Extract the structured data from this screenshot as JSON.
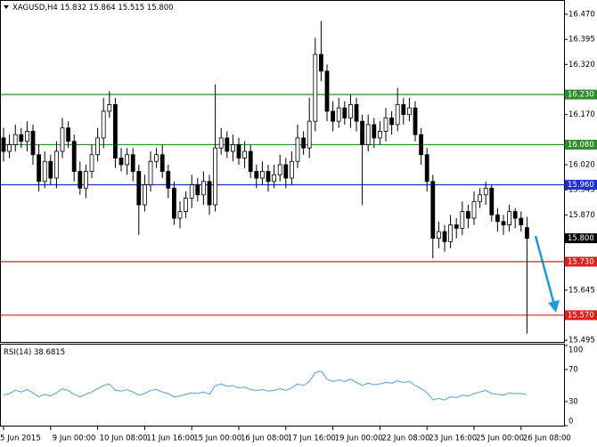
{
  "chart_data": {
    "type": "candlestick",
    "symbol": "XAGUSD,H4",
    "categories": [
      "5 Jun 2015",
      null,
      null,
      null,
      null,
      null,
      null,
      null,
      "9 Jun 00:00",
      null,
      null,
      null,
      null,
      null,
      null,
      null,
      "10 Jun 08:00",
      null,
      null,
      null,
      null,
      null,
      null,
      null,
      "11 Jun 16:00",
      null,
      null,
      null,
      null,
      null,
      null,
      null,
      "15 Jun 00:00",
      null,
      null,
      null,
      null,
      null,
      null,
      null,
      "16 Jun 08:00",
      null,
      null,
      null,
      null,
      null,
      null,
      null,
      "17 Jun 16:00",
      null,
      null,
      null,
      null,
      null,
      null,
      null,
      "19 Jun 00:00",
      null,
      null,
      null,
      null,
      null,
      null,
      null,
      "22 Jun 08:00",
      null,
      null,
      null,
      null,
      null,
      null,
      null,
      "23 Jun 16:00",
      null,
      null,
      null,
      null,
      null,
      null,
      null,
      "25 Jun 00:00",
      null,
      null,
      null,
      null,
      null,
      null,
      null,
      "26 Jun 08:00",
      null
    ],
    "open": [
      16.1,
      16.06,
      16.08,
      16.11,
      16.09,
      16.12,
      16.05,
      15.97,
      16.03,
      15.98,
      16.06,
      16.13,
      16.09,
      16.0,
      15.95,
      16.0,
      16.05,
      16.1,
      16.18,
      16.2,
      16.04,
      16.02,
      16.05,
      16.0,
      15.9,
      15.96,
      16.03,
      16.05,
      16.0,
      15.95,
      15.86,
      15.88,
      15.92,
      15.96,
      15.93,
      15.97,
      15.9,
      16.07,
      16.1,
      16.06,
      16.08,
      16.04,
      16.06,
      16.0,
      15.98,
      16.0,
      15.97,
      15.99,
      16.02,
      15.98,
      16.03,
      16.1,
      16.07,
      16.15,
      16.35,
      16.3,
      16.18,
      16.15,
      16.19,
      16.16,
      16.2,
      16.15,
      16.08,
      16.14,
      16.1,
      16.12,
      16.16,
      16.14,
      16.2,
      16.17,
      16.19,
      16.11,
      16.05,
      15.97,
      15.8,
      15.82,
      15.79,
      15.84,
      15.83,
      15.88,
      15.86,
      15.91,
      15.93,
      15.95,
      15.87,
      15.85,
      15.84,
      15.88,
      15.86,
      15.832
    ],
    "high": [
      16.13,
      16.11,
      16.14,
      16.13,
      16.15,
      16.14,
      16.08,
      16.06,
      16.05,
      16.09,
      16.16,
      16.15,
      16.11,
      16.03,
      16.02,
      16.08,
      16.13,
      16.22,
      16.24,
      16.22,
      16.07,
      16.07,
      16.07,
      16.02,
      15.99,
      16.06,
      16.07,
      16.08,
      16.02,
      15.97,
      15.91,
      15.94,
      15.99,
      15.98,
      16.0,
      15.99,
      16.26,
      16.13,
      16.12,
      16.11,
      16.1,
      16.09,
      16.08,
      16.02,
      16.03,
      16.02,
      16.02,
      16.05,
      16.04,
      16.06,
      16.14,
      16.12,
      16.22,
      16.4,
      16.45,
      16.32,
      16.21,
      16.22,
      16.21,
      16.23,
      16.22,
      16.17,
      16.17,
      16.16,
      16.15,
      16.19,
      16.18,
      16.25,
      16.22,
      16.22,
      16.21,
      16.13,
      16.07,
      15.99,
      15.85,
      15.84,
      15.87,
      15.86,
      15.91,
      15.9,
      15.94,
      15.95,
      15.97,
      15.96,
      15.89,
      15.87,
      15.9,
      15.89,
      15.88,
      15.864
    ],
    "low": [
      16.03,
      16.04,
      16.06,
      16.07,
      16.06,
      16.02,
      15.94,
      15.95,
      15.96,
      15.95,
      16.04,
      16.07,
      15.97,
      15.93,
      15.92,
      15.98,
      16.03,
      16.07,
      16.16,
      16.01,
      16.0,
      15.99,
      15.97,
      15.81,
      15.88,
      15.94,
      16.01,
      15.98,
      15.92,
      15.84,
      15.83,
      15.86,
      15.89,
      15.91,
      15.9,
      15.87,
      15.88,
      16.05,
      16.04,
      16.03,
      16.02,
      16.01,
      15.98,
      15.95,
      15.96,
      15.94,
      15.95,
      15.97,
      15.95,
      15.96,
      16.01,
      16.05,
      16.04,
      16.12,
      16.27,
      16.15,
      16.12,
      16.13,
      16.14,
      16.13,
      16.12,
      15.9,
      16.06,
      16.07,
      16.08,
      16.09,
      16.11,
      16.12,
      16.14,
      16.15,
      16.09,
      16.02,
      15.94,
      15.74,
      15.77,
      15.76,
      15.77,
      15.8,
      15.81,
      15.83,
      15.84,
      15.89,
      15.9,
      15.85,
      15.82,
      15.81,
      15.82,
      15.83,
      15.82,
      15.515
    ],
    "close": [
      16.06,
      16.08,
      16.11,
      16.09,
      16.12,
      16.05,
      15.97,
      16.03,
      15.98,
      16.06,
      16.13,
      16.09,
      16.0,
      15.95,
      16.0,
      16.05,
      16.1,
      16.18,
      16.2,
      16.04,
      16.02,
      16.05,
      16.0,
      15.9,
      15.96,
      16.03,
      16.05,
      16.0,
      15.95,
      15.86,
      15.88,
      15.92,
      15.96,
      15.93,
      15.97,
      15.9,
      16.07,
      16.1,
      16.06,
      16.08,
      16.04,
      16.06,
      16.0,
      15.98,
      16.0,
      15.97,
      15.99,
      16.02,
      15.98,
      16.03,
      16.1,
      16.07,
      16.15,
      16.35,
      16.3,
      16.18,
      16.15,
      16.19,
      16.16,
      16.2,
      16.15,
      16.08,
      16.14,
      16.1,
      16.12,
      16.16,
      16.14,
      16.2,
      16.17,
      16.19,
      16.11,
      16.05,
      15.97,
      15.8,
      15.82,
      15.79,
      15.84,
      15.83,
      15.88,
      15.86,
      15.91,
      15.93,
      15.95,
      15.87,
      15.85,
      15.84,
      15.88,
      15.86,
      15.84,
      15.8
    ],
    "up_color": "#ffffff",
    "down_color": "#000000",
    "ylim": [
      15.49,
      16.51
    ],
    "yticks": [
      {
        "value": 16.47,
        "label": "16.470"
      },
      {
        "value": 16.395,
        "label": "16.395"
      },
      {
        "value": 16.32,
        "label": "16.320"
      },
      {
        "value": 16.17,
        "label": "16.170"
      },
      {
        "value": 16.02,
        "label": "16.020"
      },
      {
        "value": 15.945,
        "label": "15.945"
      },
      {
        "value": 15.87,
        "label": "15.870"
      },
      {
        "value": 15.645,
        "label": "15.645"
      },
      {
        "value": 15.495,
        "label": "15.495"
      }
    ],
    "grid": false,
    "current_price": {
      "value": 15.8,
      "label": "15.800"
    },
    "levels": [
      {
        "value": 16.23,
        "label": "16.230",
        "color": "#2e8b2e"
      },
      {
        "value": 16.08,
        "label": "16.080",
        "color": "#2e8b2e"
      },
      {
        "value": 15.96,
        "label": "15.960",
        "color": "#1f2fd6"
      },
      {
        "value": 15.73,
        "label": "15.730",
        "color": "#e02020"
      },
      {
        "value": 15.57,
        "label": "15.570",
        "color": "#e02020"
      }
    ],
    "indicator": {
      "type": "line",
      "name": "RSI(14)",
      "color": "#4aa3df",
      "values": [
        38,
        40,
        44,
        42,
        45,
        41,
        36,
        39,
        37,
        41,
        46,
        44,
        39,
        36,
        39,
        42,
        46,
        50,
        52,
        44,
        43,
        45,
        42,
        38,
        40,
        44,
        45,
        42,
        40,
        36,
        37,
        39,
        41,
        40,
        42,
        39,
        50,
        52,
        49,
        50,
        47,
        48,
        45,
        44,
        45,
        43,
        44,
        46,
        44,
        47,
        52,
        50,
        55,
        66,
        68,
        58,
        55,
        57,
        55,
        58,
        54,
        50,
        53,
        51,
        52,
        54,
        53,
        56,
        54,
        55,
        50,
        46,
        41,
        32,
        34,
        32,
        36,
        35,
        38,
        37,
        40,
        42,
        44,
        40,
        39,
        38,
        41,
        40,
        40,
        38.6815
      ],
      "ylim": [
        0,
        100
      ],
      "yticks": [
        100,
        70,
        30,
        0
      ]
    }
  }
}
